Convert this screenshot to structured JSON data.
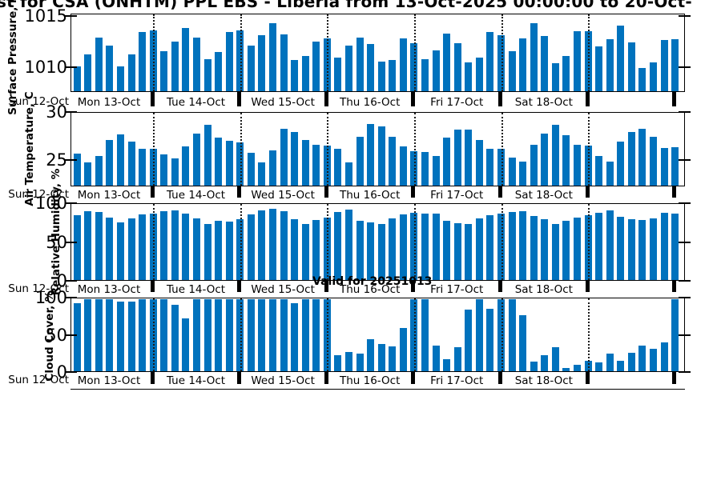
{
  "title": "st for CSA (ONHTM) PPL EBS  - Liberia from 13-Oct-2025 00:00:00 to 20-Oct-",
  "annotation": "Valid for 20251013",
  "colors": {
    "bar": "#0072BD",
    "axis": "#000000"
  },
  "x_axis": {
    "pre_label": "Sun 12-Oct",
    "day_labels": [
      "Mon 13-Oct",
      "Tue 14-Oct",
      "Wed 15-Oct",
      "Thu 16-Oct",
      "Fri 17-Oct",
      "Sat 18-Oct",
      ""
    ],
    "bars_per_day": 8,
    "days": 7
  },
  "chart_data": [
    {
      "type": "bar",
      "ylabel": "Surface Pressure, mb",
      "ylim": [
        1007.6,
        1015.2
      ],
      "yticks": [
        {
          "value": 1010,
          "label": "1010"
        },
        {
          "value": 1015,
          "label": "1015"
        }
      ],
      "values": [
        1010.1,
        1011.3,
        1013.0,
        1012.2,
        1010.1,
        1011.3,
        1013.5,
        1013.7,
        1011.6,
        1012.6,
        1013.9,
        1013.0,
        1010.8,
        1011.5,
        1013.5,
        1013.7,
        1012.2,
        1013.2,
        1014.4,
        1013.3,
        1010.7,
        1011.1,
        1012.6,
        1012.9,
        1011.0,
        1012.2,
        1013.0,
        1012.3,
        1010.6,
        1010.7,
        1012.9,
        1012.4,
        1010.8,
        1011.7,
        1013.4,
        1012.4,
        1010.5,
        1011.0,
        1013.5,
        1013.2,
        1011.6,
        1012.9,
        1014.4,
        1013.1,
        1010.4,
        1011.1,
        1013.6,
        1013.6,
        1012.1,
        1012.8,
        1014.2,
        1012.5,
        1009.9,
        1010.5,
        1012.7,
        1012.8
      ]
    },
    {
      "type": "bar",
      "ylabel": "Air Temperature, C",
      "ylim": [
        22.3,
        30.0
      ],
      "yticks": [
        {
          "value": 25,
          "label": "25"
        },
        {
          "value": 30,
          "label": "30"
        }
      ],
      "values": [
        25.7,
        24.8,
        25.5,
        27.2,
        27.8,
        27.0,
        26.2,
        26.2,
        25.6,
        25.2,
        26.5,
        27.9,
        28.8,
        27.4,
        27.1,
        26.9,
        25.8,
        24.8,
        26.1,
        28.4,
        28.0,
        27.2,
        26.7,
        26.6,
        26.2,
        24.8,
        27.5,
        28.9,
        28.6,
        27.5,
        26.5,
        26.0,
        25.9,
        25.5,
        27.4,
        28.3,
        28.3,
        27.2,
        26.2,
        26.2,
        25.3,
        24.9,
        26.7,
        27.9,
        28.8,
        27.7,
        26.7,
        26.6,
        25.5,
        24.9,
        27.0,
        28.0,
        28.4,
        27.5,
        26.3,
        26.4
      ]
    },
    {
      "type": "bar",
      "ylabel": "Relative Humidity, %",
      "ylim": [
        0,
        100
      ],
      "yticks": [
        {
          "value": 0,
          "label": "0"
        },
        {
          "value": 50,
          "label": "50"
        },
        {
          "value": 100,
          "label": "100"
        }
      ],
      "values": [
        86,
        91,
        90,
        83,
        77,
        82,
        87,
        88,
        91,
        93,
        88,
        82,
        74,
        79,
        78,
        81,
        87,
        93,
        95,
        91,
        81,
        75,
        80,
        83,
        90,
        94,
        79,
        77,
        75,
        82,
        87,
        89,
        88,
        88,
        79,
        76,
        75,
        82,
        86,
        88,
        90,
        92,
        85,
        81,
        74,
        79,
        83,
        86,
        89,
        93,
        84,
        81,
        80,
        82,
        89,
        88
      ]
    },
    {
      "type": "bar",
      "ylabel": "Cloud Cover, %",
      "ylim": [
        0,
        100
      ],
      "yticks": [
        {
          "value": 0,
          "label": "0"
        },
        {
          "value": 50,
          "label": "50"
        },
        {
          "value": 100,
          "label": "100"
        }
      ],
      "values": [
        95,
        100,
        100,
        100,
        97,
        97,
        100,
        100,
        100,
        92,
        73,
        100,
        100,
        100,
        100,
        100,
        100,
        100,
        100,
        100,
        95,
        100,
        100,
        100,
        22,
        27,
        24,
        45,
        38,
        34,
        60,
        100,
        100,
        36,
        17,
        33,
        86,
        100,
        87,
        100,
        100,
        78,
        13,
        22,
        33,
        5,
        9,
        15,
        12,
        24,
        15,
        26,
        36,
        31,
        40,
        100
      ]
    }
  ]
}
